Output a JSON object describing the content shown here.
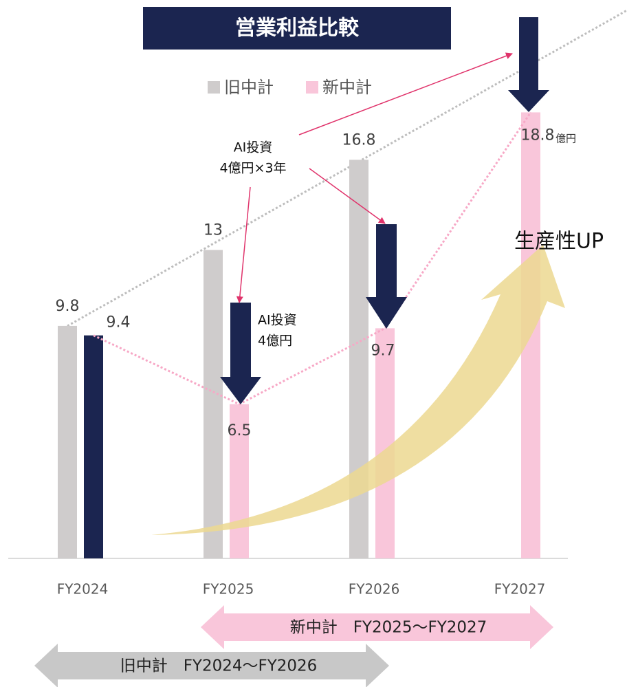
{
  "chart_data": {
    "type": "bar",
    "title": "営業利益比較",
    "categories": [
      "FY2024",
      "FY2025",
      "FY2026",
      "FY2027"
    ],
    "series": [
      {
        "name": "旧中計",
        "color": "#cfcccc",
        "values": [
          9.8,
          13,
          16.8,
          null
        ]
      },
      {
        "name": "新中計",
        "color": "#f9c6da",
        "colors": [
          "#1b2550",
          "#f9c6da",
          "#f9c6da",
          "#f9c6da"
        ],
        "values": [
          9.4,
          6.5,
          9.7,
          18.8
        ]
      }
    ],
    "ylim": [
      0,
      20
    ],
    "unit": "億円",
    "annotations": {
      "ai_total": [
        "AI投資",
        "4億円×3年"
      ],
      "ai_year": [
        "AI投資",
        "4億円"
      ],
      "productivity": "生産性UP",
      "new_plan": "新中計　FY2025～FY2027",
      "old_plan": "旧中計　FY2024～FY2026"
    }
  }
}
